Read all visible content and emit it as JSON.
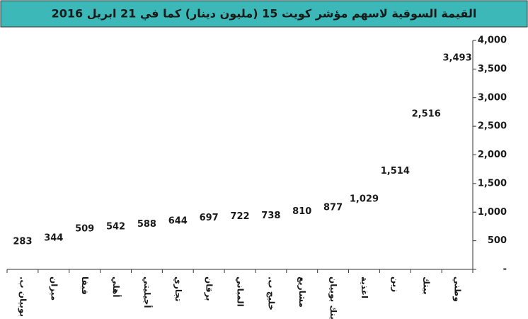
{
  "chart_data": {
    "type": "line",
    "show_line": false,
    "title": "القيمة السوقية لاسهم مؤشر كويت 15 (مليون دينار) كما في 21 ابريل 2016",
    "categories": [
      "بوبيان ب.",
      "ميزان",
      "فيفا",
      "أهلي",
      "أجيليتي",
      "تجاري",
      "برقان",
      "المباني",
      "خليج ب.",
      "مشاريع",
      "بنك بوبيان",
      "اغذية",
      "زين",
      "بيتك",
      "وطني"
    ],
    "values": [
      283,
      344,
      509,
      542,
      588,
      644,
      697,
      722,
      738,
      810,
      877,
      1029,
      1514,
      2516,
      3493
    ],
    "value_labels": [
      "283",
      "344",
      "509",
      "542",
      "588",
      "644",
      "697",
      "722",
      "738",
      "810",
      "877",
      "1,029",
      "1,514",
      "2,516",
      "3,493"
    ],
    "color": "#1a1a1a",
    "ylim": [
      0,
      4000
    ],
    "yticks": [
      {
        "value": 0,
        "label": "-"
      },
      500,
      {
        "value": 1000,
        "label": "1,000"
      },
      {
        "value": 1500,
        "label": "1,500"
      },
      {
        "value": 2000,
        "label": "2,000"
      },
      {
        "value": 2500,
        "label": "2,500"
      },
      {
        "value": 3000,
        "label": "3,000"
      },
      {
        "value": 3500,
        "label": "3,500"
      },
      {
        "value": 4000,
        "label": "4,000"
      }
    ],
    "y_axis_side": "right"
  }
}
